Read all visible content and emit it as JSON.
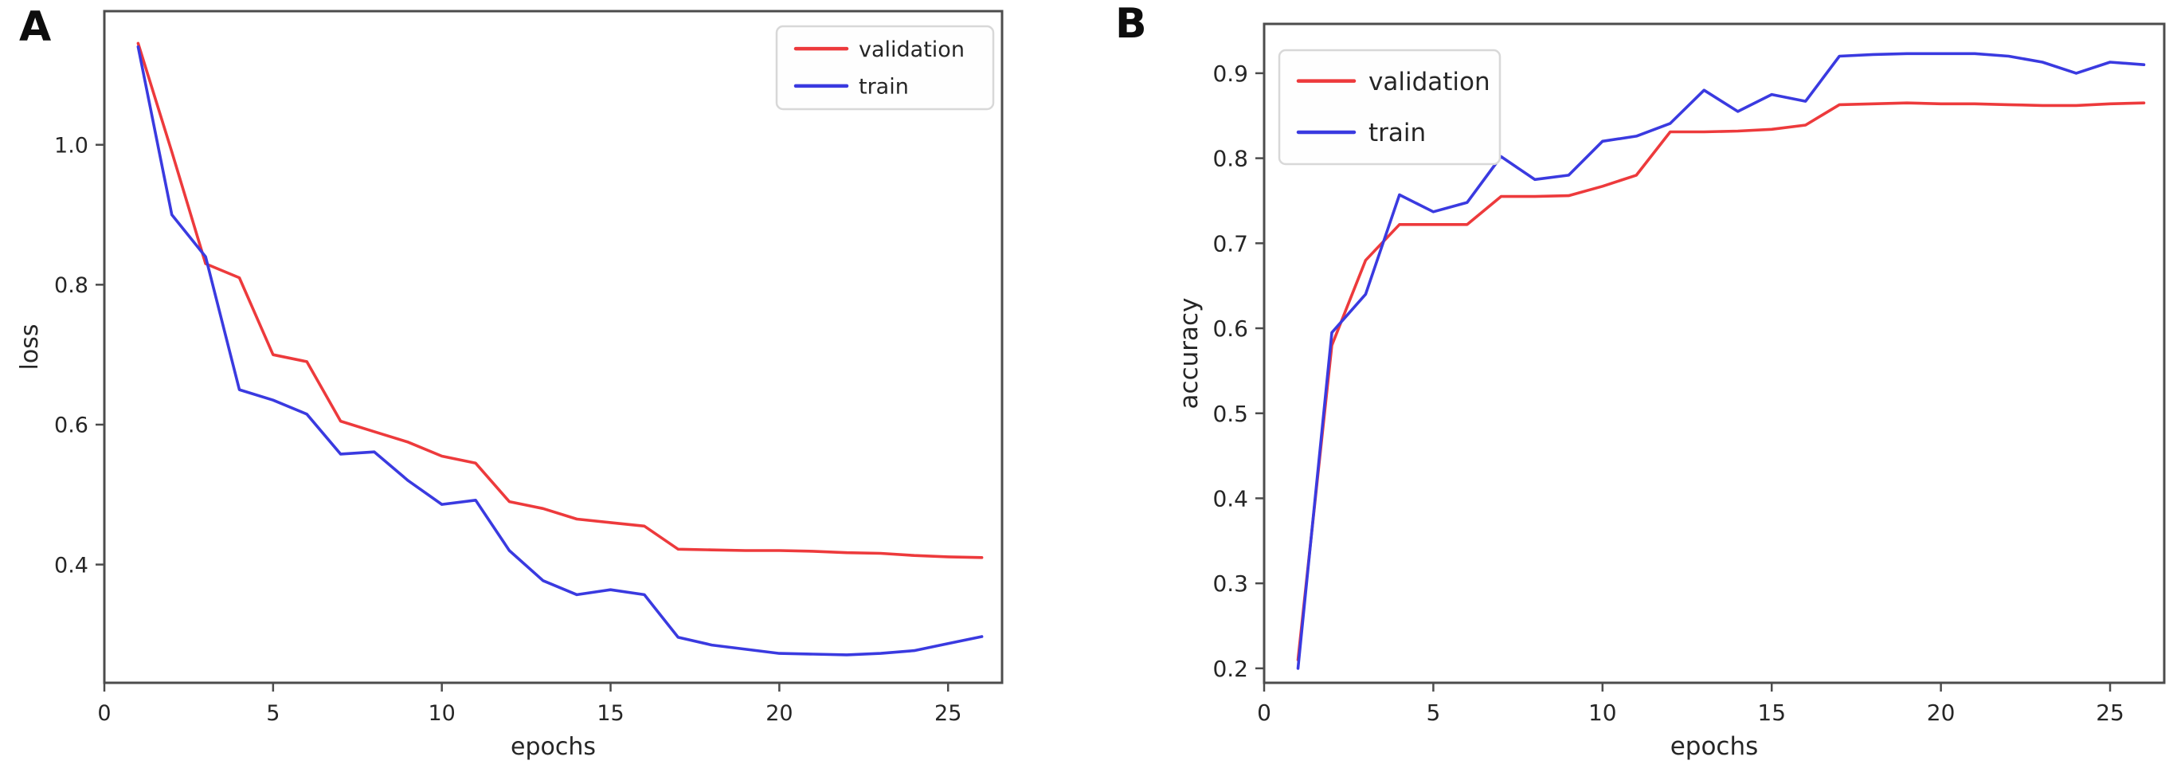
{
  "figure_title": "",
  "panel_letters": {
    "a": "A",
    "b": "B"
  },
  "colors": {
    "validation": "#ed3a3c",
    "train": "#3a3ae0",
    "spine": "#4c4c4c",
    "tick_text": "#262626",
    "legend_border": "#d8d8d8",
    "legend_fill": "#fefefe",
    "background": "#ffffff"
  },
  "chart_data": [
    {
      "panel_label": "A",
      "type": "line",
      "title": "",
      "xlabel": "epochs",
      "ylabel": "loss",
      "x": [
        1,
        2,
        3,
        4,
        5,
        6,
        7,
        8,
        9,
        10,
        11,
        12,
        13,
        14,
        15,
        16,
        17,
        18,
        19,
        20,
        21,
        22,
        23,
        24,
        25,
        26
      ],
      "series": [
        {
          "name": "validation",
          "color": "#ed3a3c",
          "values": [
            1.145,
            0.99,
            0.83,
            0.81,
            0.7,
            0.69,
            0.605,
            0.59,
            0.575,
            0.555,
            0.545,
            0.49,
            0.48,
            0.465,
            0.46,
            0.455,
            0.422,
            0.421,
            0.42,
            0.42,
            0.419,
            0.417,
            0.416,
            0.413,
            0.411,
            0.41
          ]
        },
        {
          "name": "train",
          "color": "#3a3ae0",
          "values": [
            1.14,
            0.9,
            0.84,
            0.65,
            0.635,
            0.615,
            0.558,
            0.561,
            0.52,
            0.486,
            0.492,
            0.42,
            0.377,
            0.357,
            0.364,
            0.357,
            0.296,
            0.285,
            0.279,
            0.273,
            0.272,
            0.271,
            0.273,
            0.277,
            0.287,
            0.297
          ]
        }
      ],
      "xlim": [
        0,
        26.6
      ],
      "ylim": [
        0.231,
        1.191
      ],
      "xticks": [
        0,
        5,
        10,
        15,
        20,
        25
      ],
      "xtick_labels": [
        "0",
        "5",
        "10",
        "15",
        "20",
        "25"
      ],
      "yticks": [
        0.4,
        0.6,
        0.8,
        1.0
      ],
      "ytick_labels": [
        "0.4",
        "0.6",
        "0.8",
        "1.0"
      ],
      "grid": false,
      "legend": {
        "position": "top-right",
        "entries": [
          "validation",
          "train"
        ]
      }
    },
    {
      "panel_label": "B",
      "type": "line",
      "title": "",
      "xlabel": "epochs",
      "ylabel": "accuracy",
      "x": [
        1,
        2,
        3,
        4,
        5,
        6,
        7,
        8,
        9,
        10,
        11,
        12,
        13,
        14,
        15,
        16,
        17,
        18,
        19,
        20,
        21,
        22,
        23,
        24,
        25,
        26
      ],
      "series": [
        {
          "name": "validation",
          "color": "#ed3a3c",
          "values": [
            0.21,
            0.58,
            0.68,
            0.722,
            0.722,
            0.722,
            0.755,
            0.755,
            0.756,
            0.767,
            0.78,
            0.831,
            0.831,
            0.832,
            0.834,
            0.839,
            0.863,
            0.864,
            0.865,
            0.864,
            0.864,
            0.863,
            0.862,
            0.862,
            0.864,
            0.865
          ]
        },
        {
          "name": "train",
          "color": "#3a3ae0",
          "values": [
            0.2,
            0.595,
            0.64,
            0.757,
            0.737,
            0.748,
            0.802,
            0.775,
            0.78,
            0.82,
            0.826,
            0.841,
            0.88,
            0.855,
            0.875,
            0.867,
            0.92,
            0.922,
            0.923,
            0.923,
            0.923,
            0.92,
            0.913,
            0.9,
            0.913,
            0.91
          ]
        }
      ],
      "xlim": [
        0,
        26.6
      ],
      "ylim": [
        0.183,
        0.958
      ],
      "xticks": [
        0,
        5,
        10,
        15,
        20,
        25
      ],
      "xtick_labels": [
        "0",
        "5",
        "10",
        "15",
        "20",
        "25"
      ],
      "yticks": [
        0.2,
        0.3,
        0.4,
        0.5,
        0.6,
        0.7,
        0.8,
        0.9
      ],
      "ytick_labels": [
        "0.2",
        "0.3",
        "0.4",
        "0.5",
        "0.6",
        "0.7",
        "0.8",
        "0.9"
      ],
      "grid": false,
      "legend": {
        "position": "top-left",
        "entries": [
          "validation",
          "train"
        ]
      }
    }
  ]
}
